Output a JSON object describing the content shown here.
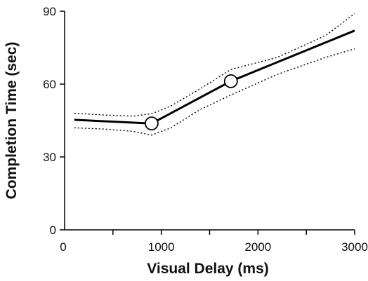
{
  "chart_data": {
    "type": "line",
    "title": "",
    "xlabel": "Visual Delay (ms)",
    "ylabel": "Completion Time (sec)",
    "xlim": [
      0,
      3000
    ],
    "ylim": [
      0,
      90
    ],
    "x_ticks": [
      0,
      1000,
      2000,
      3000
    ],
    "x_tick_labels": [
      "0",
      "1000",
      "2000",
      "3000"
    ],
    "x_minor_ticks": [
      500,
      1500,
      2500
    ],
    "y_ticks": [
      0,
      30,
      60,
      90
    ],
    "y_tick_labels": [
      "0",
      "30",
      "60",
      "90"
    ],
    "grid": false,
    "series": [
      {
        "style": "solid",
        "points": [
          [
            100,
            45.3
          ],
          [
            900,
            43.8
          ],
          [
            1720,
            61.2
          ],
          [
            3000,
            82.0
          ]
        ]
      },
      {
        "style": "dotted-upper",
        "points": [
          [
            100,
            48.0
          ],
          [
            400,
            47.3
          ],
          [
            700,
            46.8
          ],
          [
            900,
            47.8
          ],
          [
            1100,
            51.0
          ],
          [
            1400,
            58.0
          ],
          [
            1720,
            66.0
          ],
          [
            2200,
            71.0
          ],
          [
            2700,
            80.0
          ],
          [
            3000,
            89.0
          ]
        ]
      },
      {
        "style": "dotted-lower",
        "points": [
          [
            100,
            42.0
          ],
          [
            400,
            41.5
          ],
          [
            700,
            40.6
          ],
          [
            900,
            39.0
          ],
          [
            1100,
            42.0
          ],
          [
            1400,
            49.5
          ],
          [
            1720,
            55.5
          ],
          [
            2200,
            64.0
          ],
          [
            2700,
            71.0
          ],
          [
            3000,
            74.5
          ]
        ]
      }
    ],
    "markers": [
      [
        900,
        43.8
      ],
      [
        1720,
        61.2
      ]
    ]
  }
}
